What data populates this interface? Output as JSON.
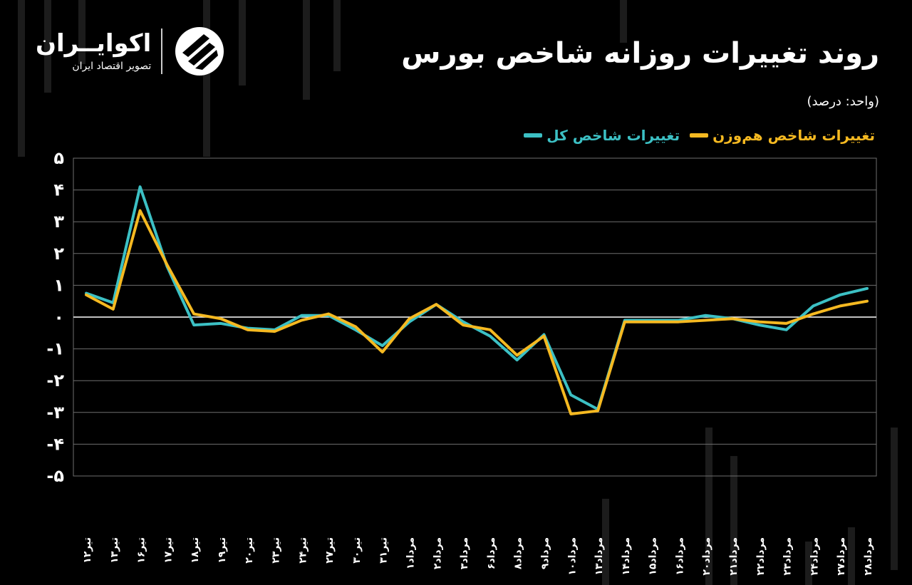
{
  "header": {
    "title": "روند تغییرات روزانه شاخص بورس",
    "unit_note": "(واحد: درصد)"
  },
  "brand": {
    "name": "اکوایــران",
    "tagline": "تصویر اقتصاد ایران",
    "icon": "ecoiran-logo-icon"
  },
  "colors": {
    "background": "#000000",
    "total_index": "#3cc0c4",
    "equal_weight_index": "#f5b921",
    "grid": "#6e6e6e",
    "zero_line": "#ffffff",
    "text": "#ffffff"
  },
  "chart_data": {
    "type": "line",
    "title": "روند تغییرات روزانه شاخص بورس",
    "ylabel": "",
    "xlabel": "",
    "ylim": [
      -5,
      5
    ],
    "y_ticks": [
      5,
      4,
      3,
      2,
      1,
      0,
      -1,
      -2,
      -3,
      -4,
      -5
    ],
    "y_tick_labels": [
      "۵",
      "۴",
      "۳",
      "۲",
      "۱",
      "۰",
      "-۱",
      "-۲",
      "-۳",
      "-۴",
      "-۵"
    ],
    "grid": true,
    "legend_position": "top-right",
    "categories": [
      "تیر۱۲",
      "تیر۱۳",
      "تیر۱۶",
      "تیر۱۷",
      "تیر۱۸",
      "تیر۱۹",
      "تیر۲۰",
      "تیر۲۳",
      "تیر۲۴",
      "تیر۲۷",
      "تیر۳۰",
      "تیر۳۱",
      "مرداد۱",
      "مرداد۲",
      "مرداد۳",
      "مرداد۶",
      "مرداد۸",
      "مرداد۹",
      "مرداد۱۰",
      "مرداد۱۳",
      "مرداد۱۴",
      "مرداد۱۵",
      "مرداد۱۶",
      "مرداد۲۰",
      "مرداد۲۱",
      "مرداد۲۲",
      "مرداد۲۳",
      "مرداد۲۴",
      "مرداد۲۷",
      "مرداد۲۸"
    ],
    "series": [
      {
        "name": "تغییرات شاخص کل",
        "color": "#3cc0c4",
        "values": [
          0.75,
          0.45,
          4.1,
          1.6,
          -0.25,
          -0.2,
          -0.35,
          -0.4,
          0.05,
          0.05,
          -0.4,
          -0.9,
          -0.15,
          0.4,
          -0.15,
          -0.6,
          -1.35,
          -0.55,
          -2.45,
          -2.9,
          -0.1,
          -0.1,
          -0.1,
          0.05,
          -0.05,
          -0.25,
          -0.4,
          0.35,
          0.7,
          0.9
        ]
      },
      {
        "name": "تغییرات شاخص هم‌وزن",
        "color": "#f5b921",
        "values": [
          0.7,
          0.25,
          3.35,
          1.65,
          0.1,
          -0.05,
          -0.4,
          -0.45,
          -0.1,
          0.1,
          -0.3,
          -1.1,
          -0.05,
          0.4,
          -0.25,
          -0.4,
          -1.2,
          -0.6,
          -3.05,
          -2.95,
          -0.15,
          -0.15,
          -0.15,
          -0.1,
          -0.05,
          -0.15,
          -0.2,
          0.1,
          0.35,
          0.5
        ]
      }
    ]
  }
}
